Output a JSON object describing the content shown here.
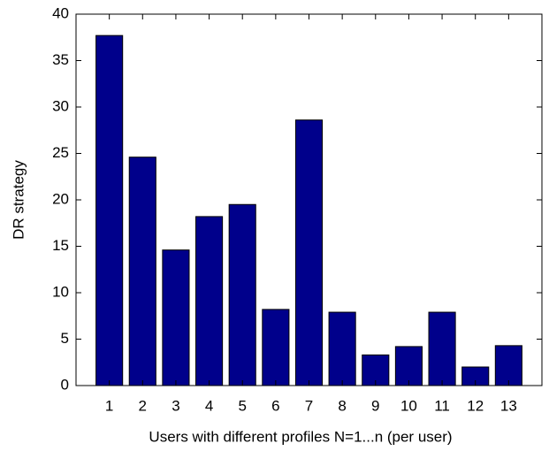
{
  "chart_data": {
    "type": "bar",
    "xlabel": "Users with different profiles N=1...n (per user)",
    "ylabel": "DR strategy",
    "categories": [
      "1",
      "2",
      "3",
      "4",
      "5",
      "6",
      "7",
      "8",
      "9",
      "10",
      "11",
      "12",
      "13"
    ],
    "values": [
      37.7,
      24.6,
      14.6,
      18.2,
      19.5,
      8.2,
      28.6,
      7.9,
      3.3,
      4.2,
      7.9,
      2.0,
      4.3
    ],
    "color": "#00008b",
    "ylim": [
      0,
      40
    ],
    "yticks": [
      0,
      5,
      10,
      15,
      20,
      25,
      30,
      35,
      40
    ],
    "grid": false
  }
}
